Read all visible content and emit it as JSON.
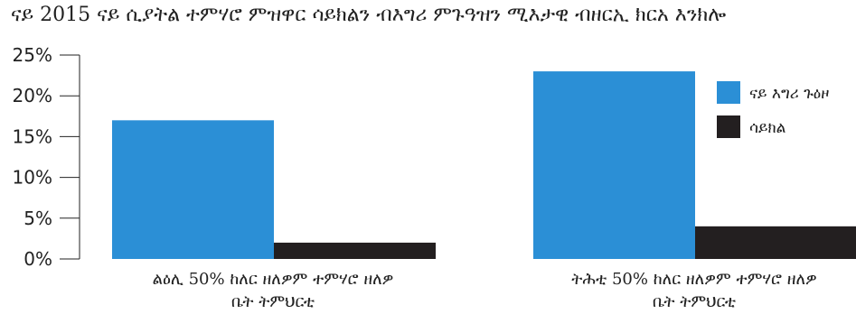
{
  "chart_data": {
    "type": "bar",
    "title": "ናይ 2015 ናይ ሲያትል ተምሃሮ ምዝዋር ሳይክልን ብእግሪ ምጉዓዝን ሚእታዊ ብዘርኢ ክርአ እንክሎ",
    "categories": [
      [
        "ልዕሊ 50% ከለር ዘለዎም ተምሃሮ ዘለዎ",
        "ቤት ትምህርቲ"
      ],
      [
        "ትሕቲ 50% ከለር ዘለዎም ተምሃሮ ዘለዎ",
        "ቤት ትምህርቲ"
      ]
    ],
    "series": [
      {
        "name": "ናይ እግሪ ጉዕዞ",
        "values": [
          17,
          23
        ],
        "color": "#2b8fd6"
      },
      {
        "name": "ሳይክል",
        "values": [
          2,
          4
        ],
        "color": "#231f20"
      }
    ],
    "y_ticks": [
      "0%",
      "5%",
      "10%",
      "15%",
      "20%",
      "25%"
    ],
    "ylim": [
      0,
      25
    ],
    "grid": false,
    "legend_position": "top-right"
  }
}
